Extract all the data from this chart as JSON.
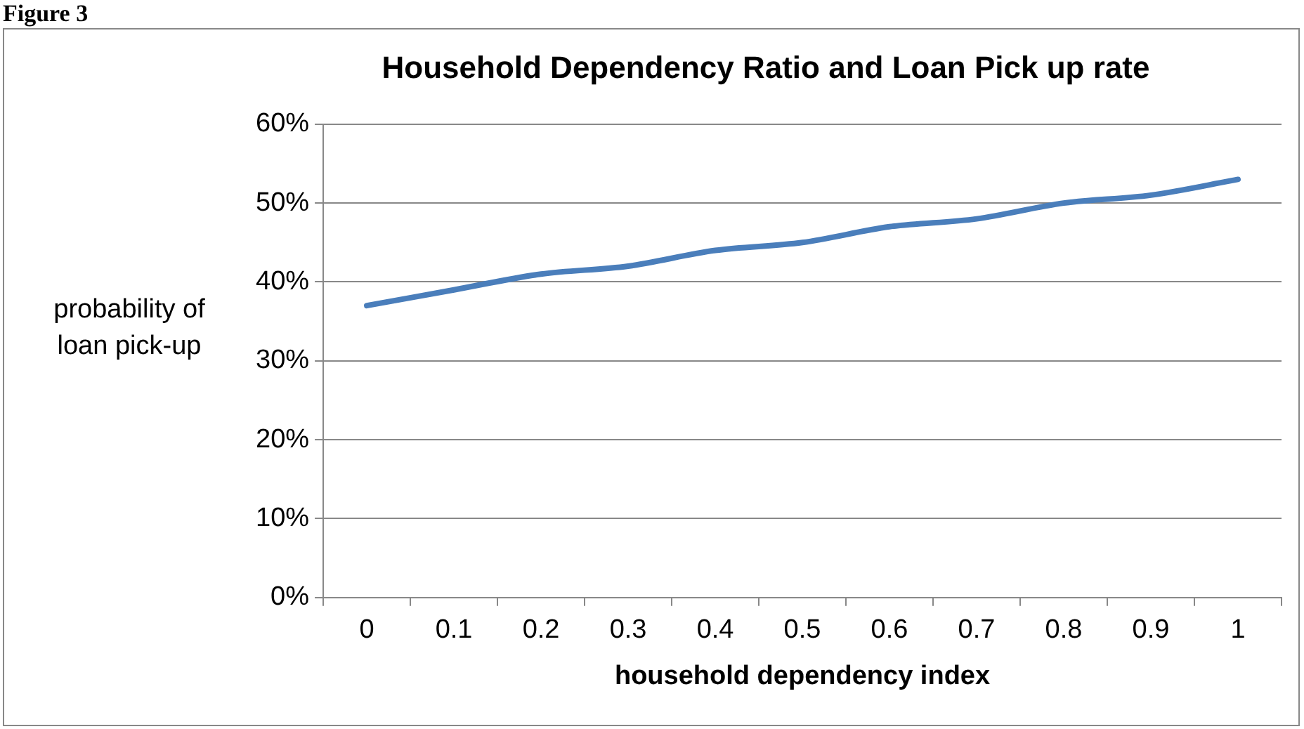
{
  "chart_data": {
    "type": "line",
    "title": "Household Dependency Ratio and Loan Pick up rate",
    "xlabel": "household dependency index",
    "ylabel": "probability of loan pick-up",
    "annotations": [
      "Figure 3"
    ],
    "categories": [
      "0",
      "0.1",
      "0.2",
      "0.3",
      "0.4",
      "0.5",
      "0.6",
      "0.7",
      "0.8",
      "0.9",
      "1"
    ],
    "series": [
      {
        "color": "#4a7ebb",
        "values": [
          37,
          39,
          41,
          42,
          44,
          45,
          47,
          48,
          50,
          51,
          53
        ]
      }
    ],
    "ylim": [
      0,
      60
    ],
    "yticks": [
      {
        "value": 0,
        "label": "0%"
      },
      {
        "value": 10,
        "label": "10%"
      },
      {
        "value": 20,
        "label": "20%"
      },
      {
        "value": 30,
        "label": "30%"
      },
      {
        "value": 40,
        "label": "40%"
      },
      {
        "value": 50,
        "label": "50%"
      },
      {
        "value": 60,
        "label": "60%"
      }
    ],
    "grid": "y",
    "legend": false,
    "marker": "none",
    "line_style": "solid"
  }
}
